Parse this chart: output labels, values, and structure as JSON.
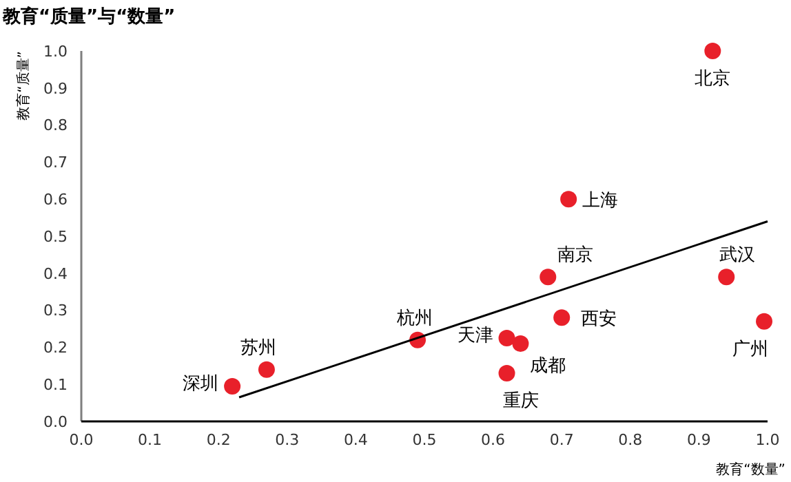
{
  "chart_data": {
    "type": "scatter",
    "title": "教育“质量”与“数量”",
    "xlabel": "教育“数量”",
    "ylabel": "教育“质量”",
    "xlim": [
      0,
      1
    ],
    "ylim": [
      0,
      1
    ],
    "xticks": [
      {
        "value": 0,
        "label": "0.0"
      },
      {
        "value": 0.1,
        "label": "0.1"
      },
      {
        "value": 0.2,
        "label": "0.2"
      },
      {
        "value": 0.3,
        "label": "0.3"
      },
      {
        "value": 0.4,
        "label": "0.4"
      },
      {
        "value": 0.5,
        "label": "0.5"
      },
      {
        "value": 0.6,
        "label": "0.6"
      },
      {
        "value": 0.7,
        "label": "0.7"
      },
      {
        "value": 0.8,
        "label": "0.8"
      },
      {
        "value": 0.9,
        "label": "0.9"
      },
      {
        "value": 1,
        "label": "1.0"
      }
    ],
    "yticks": [
      {
        "value": 0,
        "label": "0.0"
      },
      {
        "value": 0.1,
        "label": "0.1"
      },
      {
        "value": 0.2,
        "label": "0.2"
      },
      {
        "value": 0.3,
        "label": "0.3"
      },
      {
        "value": 0.4,
        "label": "0.4"
      },
      {
        "value": 0.5,
        "label": "0.5"
      },
      {
        "value": 0.6,
        "label": "0.6"
      },
      {
        "value": 0.7,
        "label": "0.7"
      },
      {
        "value": 0.8,
        "label": "0.8"
      },
      {
        "value": 0.9,
        "label": "0.9"
      },
      {
        "value": 1,
        "label": "1.0"
      }
    ],
    "grid": false,
    "series": [
      {
        "color": "#e8202a",
        "marker": "circle",
        "x": [
          0.92,
          0.71,
          0.68,
          0.94,
          0.7,
          0.995,
          0.49,
          0.62,
          0.64,
          0.62,
          0.27,
          0.22
        ],
        "values": [
          1.0,
          0.6,
          0.39,
          0.39,
          0.28,
          0.27,
          0.22,
          0.225,
          0.21,
          0.13,
          0.14,
          0.095
        ]
      },
      {
        "type": "line",
        "color": "#000000",
        "line_style": "solid",
        "marker": "none",
        "x": [
          0.23,
          1.0
        ],
        "values": [
          0.065,
          0.54
        ]
      }
    ],
    "annotations": [
      {
        "text": "北京",
        "x": 0.92,
        "y": 1.0
      },
      {
        "text": "上海",
        "x": 0.71,
        "y": 0.6
      },
      {
        "text": "南京",
        "x": 0.68,
        "y": 0.39
      },
      {
        "text": "武汉",
        "x": 0.94,
        "y": 0.39
      },
      {
        "text": "西安",
        "x": 0.7,
        "y": 0.28
      },
      {
        "text": "广州",
        "x": 0.995,
        "y": 0.27
      },
      {
        "text": "杭州",
        "x": 0.49,
        "y": 0.22
      },
      {
        "text": "天津",
        "x": 0.62,
        "y": 0.225
      },
      {
        "text": "成都",
        "x": 0.64,
        "y": 0.21
      },
      {
        "text": "重庆",
        "x": 0.62,
        "y": 0.13
      },
      {
        "text": "苏州",
        "x": 0.27,
        "y": 0.14
      },
      {
        "text": "深圳",
        "x": 0.22,
        "y": 0.095
      }
    ]
  }
}
